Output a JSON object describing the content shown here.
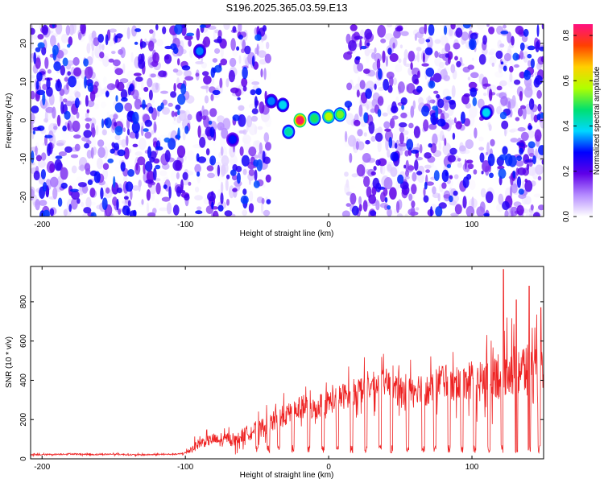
{
  "figure_title": "S196.2025.365.03.59.E13",
  "chart_data": [
    {
      "type": "heatmap",
      "title": "S196.2025.365.03.59.E13",
      "xlabel": "Height of straight line (km)",
      "ylabel": "Frequency (Hz)",
      "xlim": [
        -208,
        150
      ],
      "ylim": [
        -25,
        25
      ],
      "x_ticks": [
        -200,
        -100,
        0,
        100
      ],
      "y_ticks": [
        -20,
        -10,
        0,
        10,
        20
      ],
      "x_tick_labels": [
        "-200",
        "-100",
        "0",
        "100"
      ],
      "y_tick_labels": [
        "-20",
        "-10",
        "0",
        "10",
        "20"
      ],
      "colorbar": {
        "label": "Normalized spectral amplitude",
        "range": [
          0,
          0.85
        ],
        "ticks": [
          0,
          0.2,
          0.4,
          0.6,
          0.8
        ],
        "tick_labels": [
          "0.0",
          "0.2",
          "0.4",
          "0.6",
          "0.8"
        ],
        "colors": [
          "#ffffff",
          "#b58cff",
          "#6000e8",
          "#0000ff",
          "#00d8ff",
          "#00e070",
          "#b0ff00",
          "#ffd000",
          "#ff4000",
          "#ff1080"
        ]
      },
      "gaps_km": [
        [
          -96,
          -92
        ],
        [
          -70,
          -68
        ],
        [
          -42,
          12
        ],
        [
          103,
          106
        ],
        [
          115,
          118
        ]
      ],
      "features": [
        {
          "x": -90,
          "y": 18,
          "amp": 0.35
        },
        {
          "x": -67,
          "y": -5,
          "amp": 0.3
        },
        {
          "x": -40,
          "y": 5,
          "amp": 0.35
        },
        {
          "x": -32,
          "y": 4,
          "amp": 0.4
        },
        {
          "x": -28,
          "y": -3,
          "amp": 0.45
        },
        {
          "x": -20,
          "y": 0,
          "amp": 0.85
        },
        {
          "x": -10,
          "y": 0.5,
          "amp": 0.5
        },
        {
          "x": 0,
          "y": 1,
          "amp": 0.6
        },
        {
          "x": 8,
          "y": 1.5,
          "amp": 0.55
        },
        {
          "x": 110,
          "y": 2,
          "amp": 0.4
        }
      ]
    },
    {
      "type": "line",
      "xlabel": "Height of straight line (km)",
      "ylabel": "SNR (10 * v/v)",
      "xlim": [
        -208,
        150
      ],
      "ylim": [
        0,
        980
      ],
      "x_ticks": [
        -200,
        -100,
        0,
        100
      ],
      "y_ticks": [
        0,
        200,
        400,
        600,
        800
      ],
      "x_tick_labels": [
        "-200",
        "-100",
        "0",
        "100"
      ],
      "y_tick_labels": [
        "0",
        "200",
        "400",
        "600",
        "800"
      ],
      "color": "#ee2222",
      "series": [
        {
          "name": "SNR",
          "x": [
            -208,
            -195,
            -180,
            -165,
            -150,
            -135,
            -120,
            -105,
            -100,
            -95,
            -90,
            -85,
            -80,
            -75,
            -70,
            -65,
            -60,
            -55,
            -50,
            -45,
            -40,
            -35,
            -30,
            -25,
            -20,
            -15,
            -10,
            -5,
            0,
            5,
            10,
            15,
            20,
            25,
            30,
            35,
            40,
            45,
            50,
            55,
            60,
            65,
            70,
            75,
            80,
            85,
            90,
            95,
            100,
            105,
            110,
            115,
            120,
            125,
            130,
            135,
            140,
            145,
            150
          ],
          "y": [
            20,
            22,
            25,
            22,
            24,
            20,
            22,
            24,
            30,
            55,
            80,
            90,
            100,
            85,
            110,
            90,
            120,
            140,
            150,
            160,
            180,
            210,
            220,
            240,
            260,
            270,
            250,
            280,
            290,
            300,
            320,
            330,
            350,
            360,
            370,
            380,
            390,
            360,
            330,
            380,
            360,
            370,
            340,
            390,
            410,
            380,
            350,
            400,
            410,
            380,
            420,
            450,
            420,
            480,
            440,
            460,
            430,
            420,
            400
          ],
          "spread": [
            8,
            8,
            8,
            8,
            8,
            8,
            8,
            8,
            15,
            50,
            60,
            60,
            70,
            60,
            60,
            70,
            80,
            90,
            100,
            110,
            120,
            120,
            120,
            130,
            130,
            130,
            130,
            140,
            140,
            140,
            150,
            150,
            150,
            160,
            160,
            160,
            160,
            160,
            170,
            170,
            170,
            180,
            180,
            190,
            200,
            200,
            200,
            220,
            240,
            240,
            260,
            280,
            300,
            320,
            320,
            320,
            320,
            320,
            320
          ],
          "dips": [
            -50,
            -42,
            -35,
            -25,
            -14,
            -4,
            6,
            16,
            26,
            36,
            44,
            55,
            66,
            74,
            84,
            93,
            102,
            112,
            121,
            131,
            140,
            147
          ],
          "peaks": [
            {
              "x": 122,
              "y": 965
            },
            {
              "x": 140,
              "y": 880
            },
            {
              "x": 131,
              "y": 810
            },
            {
              "x": 148,
              "y": 770
            }
          ]
        }
      ]
    }
  ]
}
